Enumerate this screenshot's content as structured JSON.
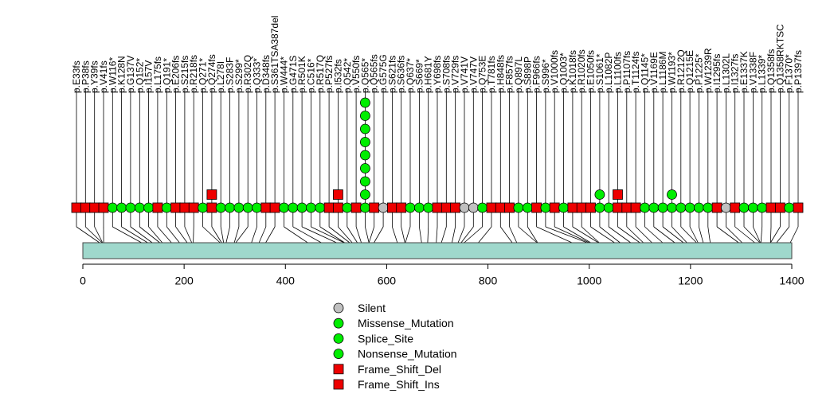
{
  "chart_data": {
    "type": "lollipop",
    "protein_length": 1400,
    "xlim": [
      0,
      1400
    ],
    "x_ticks": [
      0,
      200,
      400,
      600,
      800,
      1000,
      1200,
      1400
    ],
    "x_tick_labels": [
      "0",
      "200",
      "400",
      "600",
      "800",
      "1000",
      "1200",
      "1400"
    ],
    "domain_color": "#9fd8cc",
    "legend": [
      {
        "label": "Silent",
        "shape": "circle",
        "color": "#c0c0c0"
      },
      {
        "label": "Missense_Mutation",
        "shape": "circle",
        "color": "#00ee00"
      },
      {
        "label": "Splice_Site",
        "shape": "circle",
        "color": "#00ee00"
      },
      {
        "label": "Nonsense_Mutation",
        "shape": "circle",
        "color": "#00ee00"
      },
      {
        "label": "Frame_Shift_Del",
        "shape": "square",
        "color": "#ee0000"
      },
      {
        "label": "Frame_Shift_Ins",
        "shape": "square",
        "color": "#ee0000"
      }
    ],
    "mutations": [
      {
        "label": "p.E33fs",
        "pos": 33,
        "type": "Frame_Shift_Del",
        "count": 1
      },
      {
        "label": "p.P38fs",
        "pos": 38,
        "type": "Frame_Shift_Del",
        "count": 1
      },
      {
        "label": "p.Y39fs",
        "pos": 39,
        "type": "Frame_Shift_Del",
        "count": 1
      },
      {
        "label": "p.V41fs",
        "pos": 41,
        "type": "Frame_Shift_Del",
        "count": 1
      },
      {
        "label": "p.W116*",
        "pos": 116,
        "type": "Nonsense_Mutation",
        "count": 1
      },
      {
        "label": "p.K128N",
        "pos": 128,
        "type": "Missense_Mutation",
        "count": 1
      },
      {
        "label": "p.G137V",
        "pos": 137,
        "type": "Missense_Mutation",
        "count": 1
      },
      {
        "label": "p.Q152*",
        "pos": 152,
        "type": "Nonsense_Mutation",
        "count": 1
      },
      {
        "label": "p.I157V",
        "pos": 157,
        "type": "Missense_Mutation",
        "count": 1
      },
      {
        "label": "p.L175fs",
        "pos": 175,
        "type": "Frame_Shift_Del",
        "count": 1
      },
      {
        "label": "p.Q191*",
        "pos": 191,
        "type": "Nonsense_Mutation",
        "count": 1
      },
      {
        "label": "p.E206fs",
        "pos": 206,
        "type": "Frame_Shift_Del",
        "count": 1
      },
      {
        "label": "p.S215fs",
        "pos": 215,
        "type": "Frame_Shift_Del",
        "count": 1
      },
      {
        "label": "p.R218fs",
        "pos": 218,
        "type": "Frame_Shift_Del",
        "count": 1
      },
      {
        "label": "p.Q271*",
        "pos": 271,
        "type": "Nonsense_Mutation",
        "count": 1
      },
      {
        "label": "p.Q274fs",
        "pos": 274,
        "type": "Frame_Shift_Del",
        "count": 2
      },
      {
        "label": "p.L278I",
        "pos": 278,
        "type": "Missense_Mutation",
        "count": 1
      },
      {
        "label": "p.S283F",
        "pos": 283,
        "type": "Missense_Mutation",
        "count": 1
      },
      {
        "label": "p.S299*",
        "pos": 299,
        "type": "Nonsense_Mutation",
        "count": 1
      },
      {
        "label": "p.R302Q",
        "pos": 302,
        "type": "Missense_Mutation",
        "count": 1
      },
      {
        "label": "p.Q333*",
        "pos": 333,
        "type": "Nonsense_Mutation",
        "count": 1
      },
      {
        "label": "p.D348fs",
        "pos": 348,
        "type": "Frame_Shift_Del",
        "count": 1
      },
      {
        "label": "p.S361TSA387del",
        "pos": 361,
        "type": "Frame_Shift_Del",
        "count": 1
      },
      {
        "label": "p.W444*",
        "pos": 444,
        "type": "Nonsense_Mutation",
        "count": 1
      },
      {
        "label": "p.G471S",
        "pos": 471,
        "type": "Missense_Mutation",
        "count": 1
      },
      {
        "label": "p.R501K",
        "pos": 501,
        "type": "Missense_Mutation",
        "count": 1
      },
      {
        "label": "p.C516*",
        "pos": 516,
        "type": "Nonsense_Mutation",
        "count": 1
      },
      {
        "label": "p.R517Q",
        "pos": 517,
        "type": "Missense_Mutation",
        "count": 1
      },
      {
        "label": "p.P527fs",
        "pos": 527,
        "type": "Frame_Shift_Del",
        "count": 1
      },
      {
        "label": "p.I532fs",
        "pos": 532,
        "type": "Frame_Shift_Del",
        "count": 2
      },
      {
        "label": "p.Q542*",
        "pos": 542,
        "type": "Nonsense_Mutation",
        "count": 1
      },
      {
        "label": "p.V550fs",
        "pos": 550,
        "type": "Frame_Shift_Del",
        "count": 1
      },
      {
        "label": "p.Q565*",
        "pos": 565,
        "type": "Nonsense_Mutation",
        "count": 9
      },
      {
        "label": "p.Q565fs",
        "pos": 565,
        "type": "Frame_Shift_Del",
        "count": 1
      },
      {
        "label": "p.G575G",
        "pos": 575,
        "type": "Silent",
        "count": 1
      },
      {
        "label": "p.S621fs",
        "pos": 621,
        "type": "Frame_Shift_Del",
        "count": 1
      },
      {
        "label": "p.S636fs",
        "pos": 636,
        "type": "Frame_Shift_Del",
        "count": 1
      },
      {
        "label": "p.Q637*",
        "pos": 637,
        "type": "Nonsense_Mutation",
        "count": 1
      },
      {
        "label": "p.S669*",
        "pos": 669,
        "type": "Nonsense_Mutation",
        "count": 1
      },
      {
        "label": "p.H681Y",
        "pos": 681,
        "type": "Missense_Mutation",
        "count": 1
      },
      {
        "label": "p.Y698fs",
        "pos": 698,
        "type": "Frame_Shift_Del",
        "count": 1
      },
      {
        "label": "p.S708fs",
        "pos": 708,
        "type": "Frame_Shift_Del",
        "count": 1
      },
      {
        "label": "p.V729fs",
        "pos": 729,
        "type": "Frame_Shift_Del",
        "count": 1
      },
      {
        "label": "p.V741V",
        "pos": 741,
        "type": "Silent",
        "count": 1
      },
      {
        "label": "p.V747V",
        "pos": 747,
        "type": "Silent",
        "count": 1
      },
      {
        "label": "p.Q753E",
        "pos": 753,
        "type": "Missense_Mutation",
        "count": 1
      },
      {
        "label": "p.T781fs",
        "pos": 781,
        "type": "Frame_Shift_Del",
        "count": 1
      },
      {
        "label": "p.H848fs",
        "pos": 848,
        "type": "Frame_Shift_Del",
        "count": 1
      },
      {
        "label": "p.F857fs",
        "pos": 857,
        "type": "Frame_Shift_Del",
        "count": 1
      },
      {
        "label": "p.Q897L",
        "pos": 897,
        "type": "Missense_Mutation",
        "count": 1
      },
      {
        "label": "p.S898P",
        "pos": 898,
        "type": "Missense_Mutation",
        "count": 1
      },
      {
        "label": "p.F966fs",
        "pos": 966,
        "type": "Frame_Shift_Del",
        "count": 1
      },
      {
        "label": "p.S996*",
        "pos": 996,
        "type": "Nonsense_Mutation",
        "count": 1
      },
      {
        "label": "p.V1000fs",
        "pos": 1000,
        "type": "Frame_Shift_Del",
        "count": 1
      },
      {
        "label": "p.Q1003*",
        "pos": 1003,
        "type": "Nonsense_Mutation",
        "count": 1
      },
      {
        "label": "p.K1018fs",
        "pos": 1018,
        "type": "Frame_Shift_Del",
        "count": 1
      },
      {
        "label": "p.R1020fs",
        "pos": 1020,
        "type": "Frame_Shift_Del",
        "count": 1
      },
      {
        "label": "p.E1050fs",
        "pos": 1050,
        "type": "Frame_Shift_Del",
        "count": 1
      },
      {
        "label": "p.S1061*",
        "pos": 1061,
        "type": "Nonsense_Mutation",
        "count": 2
      },
      {
        "label": "p.L1082P",
        "pos": 1082,
        "type": "Missense_Mutation",
        "count": 1
      },
      {
        "label": "p.L1100fs",
        "pos": 1100,
        "type": "Frame_Shift_Del",
        "count": 2
      },
      {
        "label": "p.P1107fs",
        "pos": 1107,
        "type": "Frame_Shift_Del",
        "count": 1
      },
      {
        "label": "p.T1124fs",
        "pos": 1124,
        "type": "Frame_Shift_Del",
        "count": 1
      },
      {
        "label": "p.Q1145*",
        "pos": 1145,
        "type": "Nonsense_Mutation",
        "count": 1
      },
      {
        "label": "p.V1169E",
        "pos": 1169,
        "type": "Missense_Mutation",
        "count": 1
      },
      {
        "label": "p.L1186M",
        "pos": 1186,
        "type": "Missense_Mutation",
        "count": 1
      },
      {
        "label": "p.W1193*",
        "pos": 1193,
        "type": "Nonsense_Mutation",
        "count": 2
      },
      {
        "label": "p.R1212Q",
        "pos": 1212,
        "type": "Missense_Mutation",
        "count": 1
      },
      {
        "label": "p.Q1215E",
        "pos": 1215,
        "type": "Missense_Mutation",
        "count": 1
      },
      {
        "label": "p.P1225*",
        "pos": 1225,
        "type": "Nonsense_Mutation",
        "count": 1
      },
      {
        "label": "p.W1239R",
        "pos": 1239,
        "type": "Missense_Mutation",
        "count": 1
      },
      {
        "label": "p.I1295fs",
        "pos": 1295,
        "type": "Frame_Shift_Del",
        "count": 1
      },
      {
        "label": "p.L1302L",
        "pos": 1302,
        "type": "Silent",
        "count": 1
      },
      {
        "label": "p.I1327fs",
        "pos": 1327,
        "type": "Frame_Shift_Del",
        "count": 1
      },
      {
        "label": "p.E1337K",
        "pos": 1337,
        "type": "Missense_Mutation",
        "count": 1
      },
      {
        "label": "p.V1338F",
        "pos": 1338,
        "type": "Missense_Mutation",
        "count": 1
      },
      {
        "label": "p.L1339*",
        "pos": 1339,
        "type": "Nonsense_Mutation",
        "count": 1
      },
      {
        "label": "p.Q1358fs",
        "pos": 1358,
        "type": "Frame_Shift_Del",
        "count": 1
      },
      {
        "label": "p.Q1358RKTSC",
        "pos": 1358,
        "type": "Frame_Shift_Ins",
        "count": 1
      },
      {
        "label": "p.F1370*",
        "pos": 1370,
        "type": "Nonsense_Mutation",
        "count": 1
      },
      {
        "label": "p.P1397fs",
        "pos": 1397,
        "type": "Frame_Shift_Del",
        "count": 1
      }
    ]
  }
}
